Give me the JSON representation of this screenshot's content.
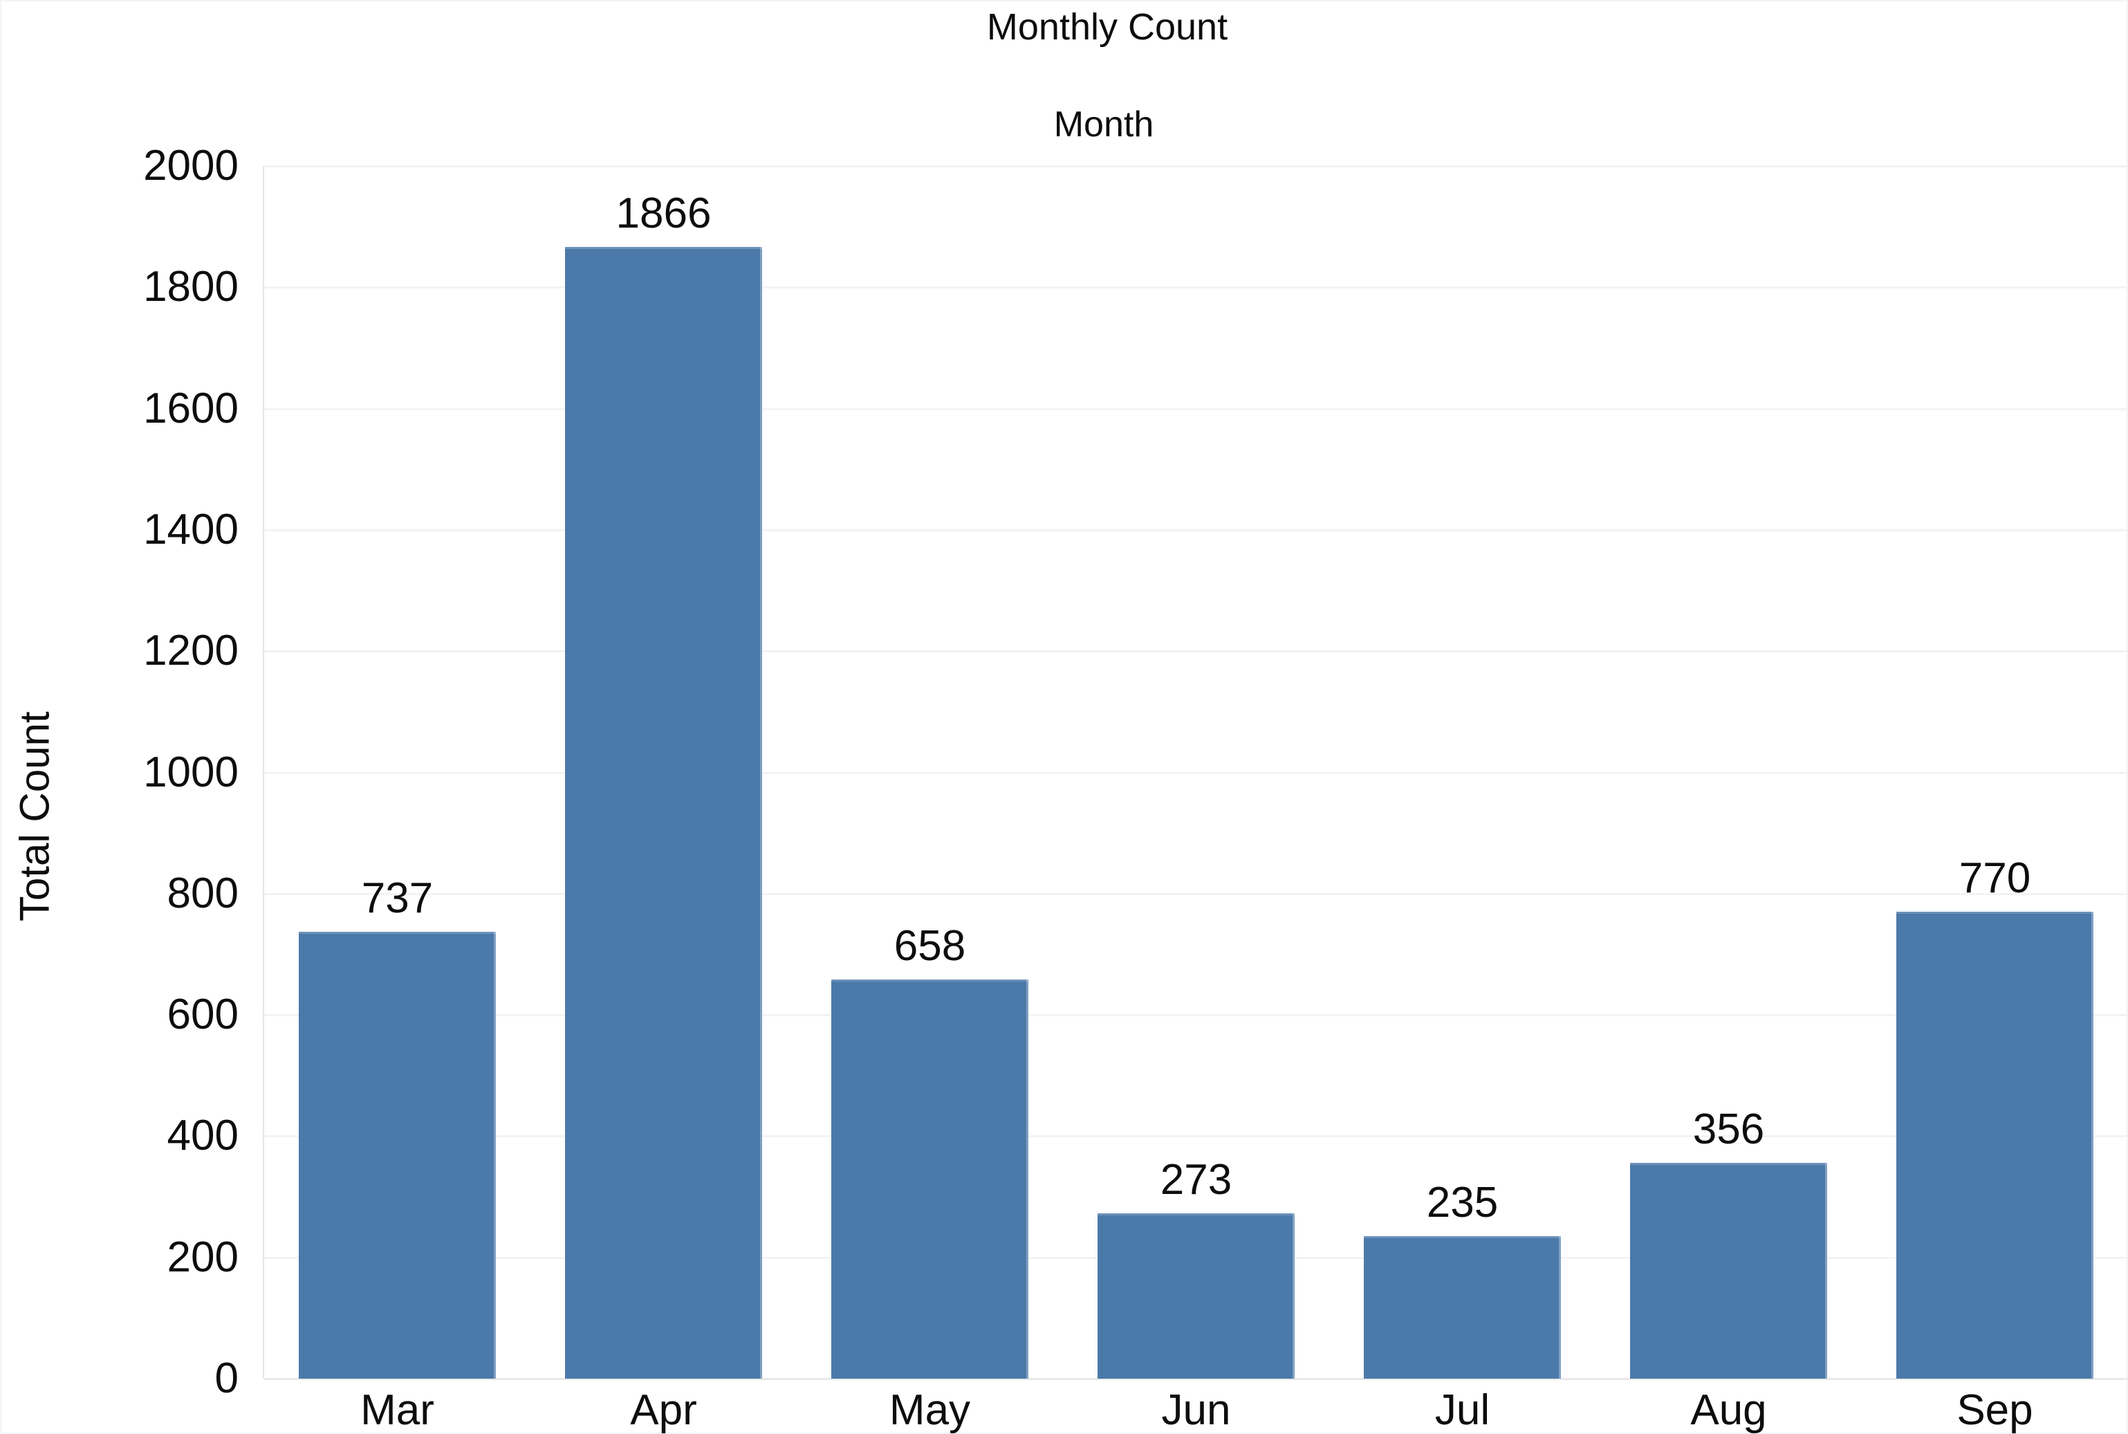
{
  "chart_data": {
    "type": "bar",
    "title": "Monthly Count",
    "subtitle": "Month",
    "xlabel": "Month",
    "ylabel": "Total Count",
    "categories": [
      "Mar",
      "Apr",
      "May",
      "Jun",
      "Jul",
      "Aug",
      "Sep"
    ],
    "values": [
      737,
      1866,
      658,
      273,
      235,
      356,
      770
    ],
    "ylim": [
      0,
      2000
    ],
    "ytick_step": 200,
    "yticks": [
      0,
      200,
      400,
      600,
      800,
      1000,
      1200,
      1400,
      1600,
      1800,
      2000
    ],
    "grid": "horizontal",
    "legend": false,
    "data_labels": true,
    "bar_color": "#4b79a9",
    "gridline_color": "#f3f3f3",
    "baseline_color": "#e9e9e9",
    "axis_line_color": "#e6e6e6",
    "text_color": "#0d0d0d",
    "background_color": "#ffffff"
  }
}
